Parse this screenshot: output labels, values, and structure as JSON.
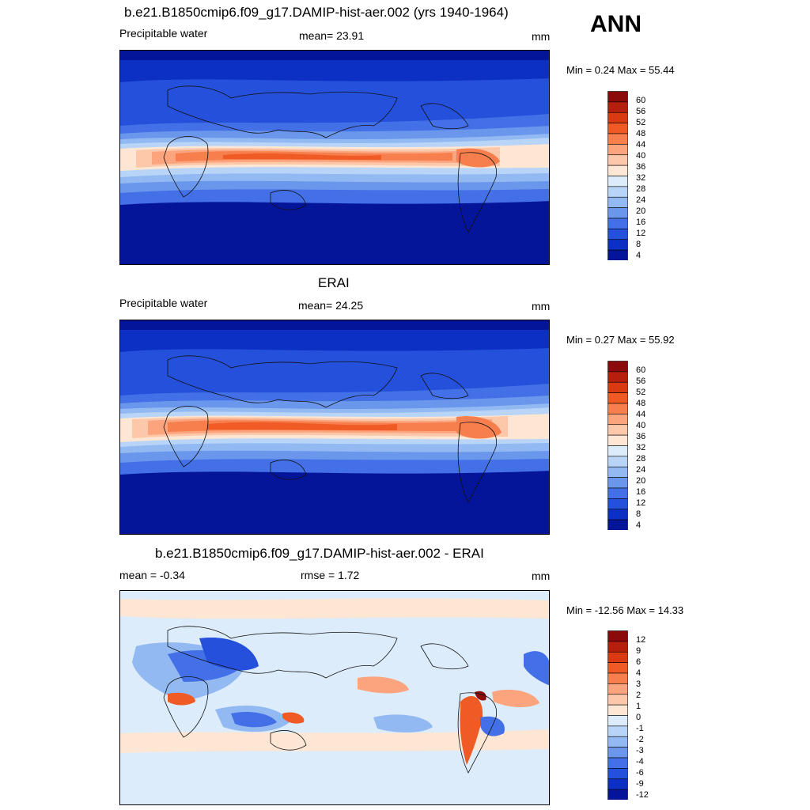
{
  "season": "ANN",
  "panels": [
    {
      "title": "b.e21.B1850cmip6.f09_g17.DAMIP-hist-aer.002 (yrs 1940-1964)",
      "left_label": "Precipitable water",
      "center_label": "mean=  23.91",
      "right_label": "mm",
      "minmax": "Min =   0.24 Max =  55.44",
      "colorbar_labels": [
        "60",
        "56",
        "52",
        "48",
        "44",
        "40",
        "36",
        "32",
        "28",
        "24",
        "20",
        "16",
        "12",
        "8",
        "4"
      ],
      "colorbar_colors": [
        "#8b0a0a",
        "#b51f0e",
        "#d93a12",
        "#f05a24",
        "#f77e4d",
        "#fba47d",
        "#fdc8aa",
        "#fde6d3",
        "#dcecfb",
        "#b8d5f7",
        "#93b9f2",
        "#6a96ec",
        "#4370e6",
        "#2450db",
        "#0d30c4",
        "#05159a"
      ]
    },
    {
      "title": "ERAI",
      "left_label": "Precipitable water",
      "center_label": "mean=  24.25",
      "right_label": "mm",
      "minmax": "Min =   0.27 Max =  55.92",
      "colorbar_labels": [
        "60",
        "56",
        "52",
        "48",
        "44",
        "40",
        "36",
        "32",
        "28",
        "24",
        "20",
        "16",
        "12",
        "8",
        "4"
      ],
      "colorbar_colors": [
        "#8b0a0a",
        "#b51f0e",
        "#d93a12",
        "#f05a24",
        "#f77e4d",
        "#fba47d",
        "#fdc8aa",
        "#fde6d3",
        "#dcecfb",
        "#b8d5f7",
        "#93b9f2",
        "#6a96ec",
        "#4370e6",
        "#2450db",
        "#0d30c4",
        "#05159a"
      ]
    },
    {
      "title": "b.e21.B1850cmip6.f09_g17.DAMIP-hist-aer.002 - ERAI",
      "left_label": "mean =  -0.34",
      "center_label": "rmse =    1.72",
      "right_label": "mm",
      "minmax": "Min = -12.56 Max =  14.33",
      "colorbar_labels": [
        "12",
        "9",
        "6",
        "4",
        "3",
        "2",
        "1",
        "0",
        "-1",
        "-2",
        "-3",
        "-4",
        "-6",
        "-9",
        "-12"
      ],
      "colorbar_colors": [
        "#8b0a0a",
        "#b51f0e",
        "#d93a12",
        "#f05a24",
        "#f77e4d",
        "#fba47d",
        "#fdc8aa",
        "#fde6d3",
        "#dcecfb",
        "#b8d5f7",
        "#93b9f2",
        "#6a96ec",
        "#4370e6",
        "#2450db",
        "#0d30c4",
        "#05159a"
      ]
    }
  ]
}
